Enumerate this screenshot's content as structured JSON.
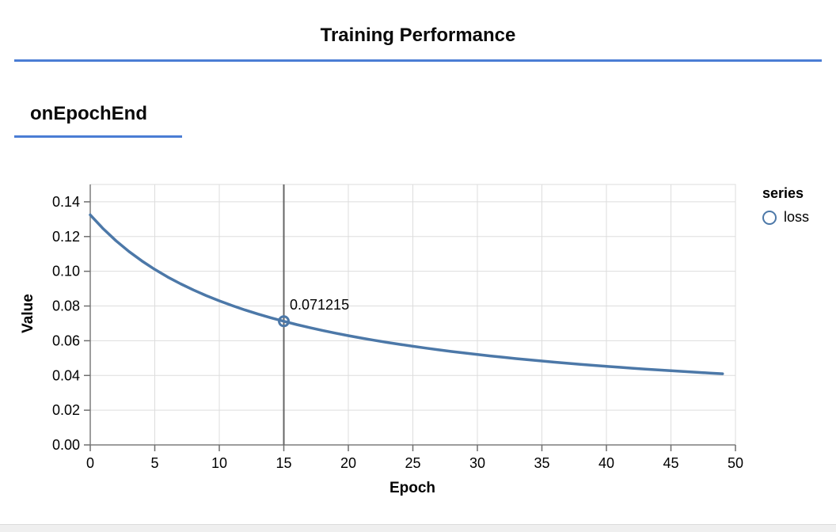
{
  "page": {
    "title": "Training Performance",
    "section_title": "onEpochEnd",
    "accent_color": "#4a7dd4"
  },
  "chart_data": {
    "type": "line",
    "title": "onEpochEnd",
    "xlabel": "Epoch",
    "ylabel": "Value",
    "xlim": [
      0,
      50
    ],
    "ylim": [
      0,
      0.15
    ],
    "grid": true,
    "x_ticks": [
      0,
      5,
      10,
      15,
      20,
      25,
      30,
      35,
      40,
      45,
      50
    ],
    "y_ticks": [
      0,
      0.02,
      0.04,
      0.06,
      0.08,
      0.1,
      0.12,
      0.14
    ],
    "y_tick_labels": [
      "0.00",
      "0.02",
      "0.04",
      "0.06",
      "0.08",
      "0.10",
      "0.12",
      "0.14"
    ],
    "legend": {
      "title": "series",
      "position": "right",
      "entries": [
        {
          "label": "loss",
          "shape": "circle",
          "color": "#4c78a8"
        }
      ]
    },
    "series": [
      {
        "name": "loss",
        "x": [
          0,
          1,
          2,
          3,
          4,
          5,
          6,
          7,
          8,
          9,
          10,
          11,
          12,
          13,
          14,
          15,
          16,
          17,
          18,
          19,
          20,
          21,
          22,
          23,
          24,
          25,
          26,
          27,
          28,
          29,
          30,
          31,
          32,
          33,
          34,
          35,
          36,
          37,
          38,
          39,
          40,
          41,
          42,
          43,
          44,
          45,
          46,
          47,
          48,
          49
        ],
        "values": [
          0.132499,
          0.124495,
          0.117517,
          0.11138,
          0.105939,
          0.101083,
          0.096722,
          0.092785,
          0.089212,
          0.085955,
          0.082974,
          0.080235,
          0.07771,
          0.075375,
          0.073209,
          0.071215,
          0.069315,
          0.067559,
          0.065915,
          0.064371,
          0.062919,
          0.061551,
          0.06026,
          0.059039,
          0.057883,
          0.056787,
          0.055747,
          0.054757,
          0.053816,
          0.052918,
          0.052062,
          0.051244,
          0.050462,
          0.049713,
          0.048996,
          0.048308,
          0.047648,
          0.047014,
          0.046405,
          0.045819,
          0.045255,
          0.044711,
          0.044187,
          0.043682,
          0.043194,
          0.042722,
          0.042267,
          0.041827,
          0.041401,
          0.040988
        ]
      }
    ],
    "annotation": {
      "x": 15,
      "y": 0.071215,
      "label": "0.071215",
      "kind": "hover-rule-with-point"
    },
    "colors": {
      "line": "#4c78a8",
      "rule": "#666666",
      "grid": "#dddddd",
      "view_border": "#dddddd",
      "axis_domain": "#7d7d7d",
      "tick": "#6e6e6e",
      "text": "#000000"
    }
  }
}
